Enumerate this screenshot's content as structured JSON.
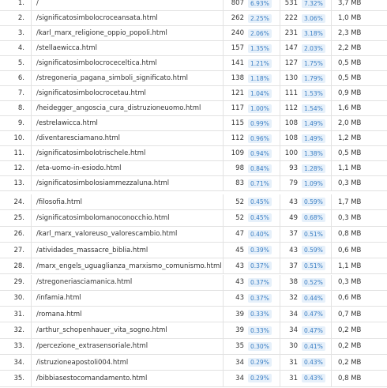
{
  "table": {
    "sections": [
      {
        "rows": [
          [
            "1.",
            "/",
            "807",
            "6.93%",
            "531",
            "7.32%",
            "3,7 MB"
          ],
          [
            "2.",
            "/significatosimbolocroceansata.html",
            "262",
            "2.25%",
            "222",
            "3.06%",
            "1,0 MB"
          ],
          [
            "3.",
            "/karl_marx_religione_oppio_popoli.html",
            "240",
            "2.06%",
            "231",
            "3.18%",
            "2,3 MB"
          ],
          [
            "4.",
            "/stellaewicca.html",
            "157",
            "1.35%",
            "147",
            "2.03%",
            "2,2 MB"
          ],
          [
            "5.",
            "/significatosimbolocroceceltica.html",
            "141",
            "1.21%",
            "127",
            "1.75%",
            "0,5 MB"
          ],
          [
            "6.",
            "/stregoneria_pagana_simboli_significato.html",
            "138",
            "1.18%",
            "130",
            "1.79%",
            "0,5 MB"
          ],
          [
            "7.",
            "/significatosimbolocrocetau.html",
            "121",
            "1.04%",
            "111",
            "1.53%",
            "0,9 MB"
          ],
          [
            "8.",
            "/heidegger_angoscia_cura_distruzioneuomo.html",
            "117",
            "1.00%",
            "112",
            "1.54%",
            "1,6 MB"
          ],
          [
            "9.",
            "/estrelawicca.html",
            "115",
            "0.99%",
            "108",
            "1.49%",
            "2,0 MB"
          ],
          [
            "10.",
            "/diventaresciamano.html",
            "112",
            "0.96%",
            "108",
            "1.49%",
            "1,2 MB"
          ],
          [
            "11.",
            "/significatosimbolotrischele.html",
            "109",
            "0.94%",
            "100",
            "1.38%",
            "0,5 MB"
          ],
          [
            "12.",
            "/eta-uomo-in-esiodo.html",
            "98",
            "0.84%",
            "93",
            "1.28%",
            "1,1 MB"
          ],
          [
            "13.",
            "/significatosimbolosiammezzaluna.html",
            "83",
            "0.71%",
            "79",
            "1.09%",
            "0,3 MB"
          ]
        ]
      },
      {
        "rows": [
          [
            "24.",
            "/filosofia.html",
            "52",
            "0.45%",
            "43",
            "0.59%",
            "1,7 MB"
          ],
          [
            "25.",
            "/significatosimbolomanoconocchio.html",
            "52",
            "0.45%",
            "49",
            "0.68%",
            "0,3 MB"
          ],
          [
            "26.",
            "/karl_marx_valoreuso_valorescambio.html",
            "47",
            "0.40%",
            "37",
            "0.51%",
            "0,8 MB"
          ],
          [
            "27.",
            "/atividades_massacre_biblia.html",
            "45",
            "0.39%",
            "43",
            "0.59%",
            "0,6 MB"
          ],
          [
            "28.",
            "/marx_engels_uguaglianza_marxismo_comunismo.html",
            "43",
            "0.37%",
            "37",
            "0.51%",
            "1,1 MB"
          ],
          [
            "29.",
            "/stregoneriasciamanica.html",
            "43",
            "0.37%",
            "38",
            "0.52%",
            "0,3 MB"
          ],
          [
            "30.",
            "/infamia.html",
            "43",
            "0.37%",
            "32",
            "0.44%",
            "0,6 MB"
          ],
          [
            "31.",
            "/romana.html",
            "39",
            "0.33%",
            "34",
            "0.47%",
            "0,7 MB"
          ],
          [
            "32.",
            "/arthur_schopenhauer_vita_sogno.html",
            "39",
            "0.33%",
            "34",
            "0.47%",
            "0,2 MB"
          ],
          [
            "33.",
            "/percezione_extrasensoriale.html",
            "35",
            "0.30%",
            "30",
            "0.41%",
            "0,2 MB"
          ],
          [
            "34.",
            "/istruzioneapostoli004.html",
            "34",
            "0.29%",
            "31",
            "0.43%",
            "0,2 MB"
          ],
          [
            "35.",
            "/bibbiasestocomandamento.html",
            "34",
            "0.29%",
            "31",
            "0.43%",
            "0,8 MB"
          ]
        ]
      }
    ]
  }
}
